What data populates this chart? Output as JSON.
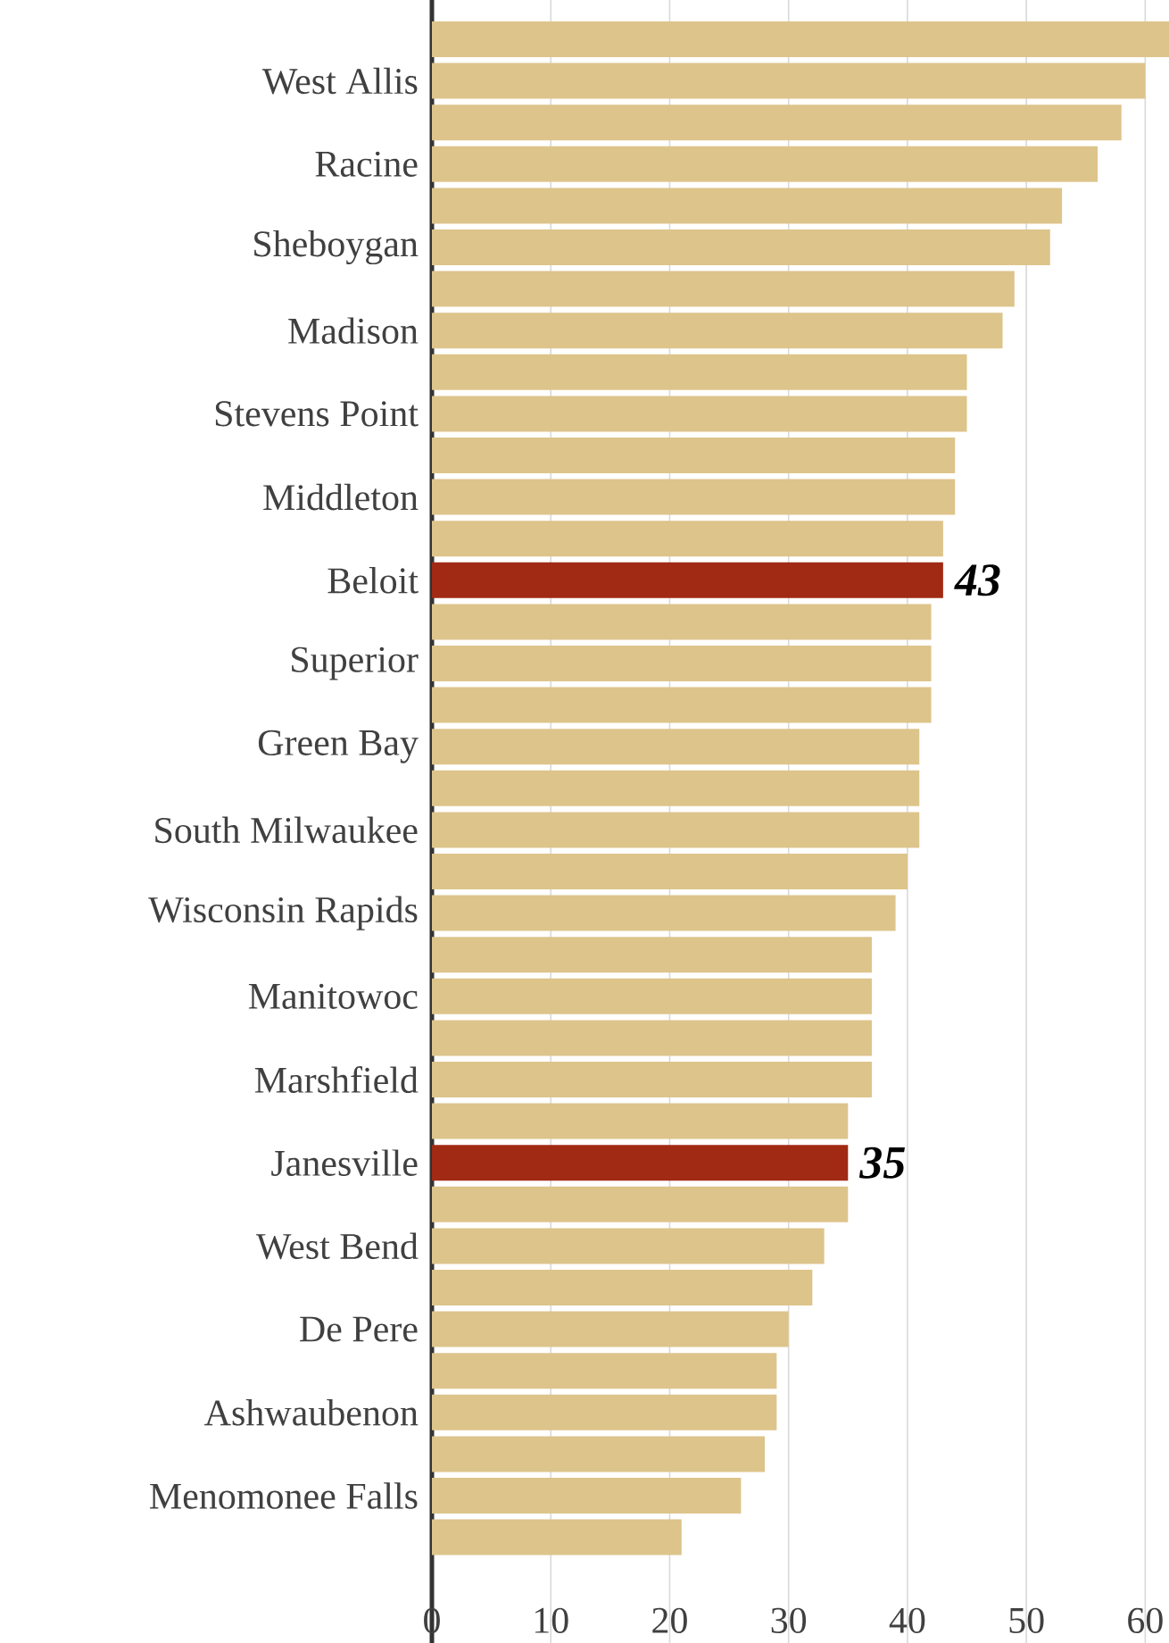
{
  "chart_data": {
    "type": "bar",
    "orientation": "horizontal",
    "categories": [
      null,
      "West Allis",
      null,
      "Racine",
      null,
      "Sheboygan",
      null,
      "Madison",
      null,
      "Stevens Point",
      null,
      "Middleton",
      null,
      "Beloit",
      null,
      "Superior",
      null,
      "Green Bay",
      null,
      "South Milwaukee",
      null,
      "Wisconsin Rapids",
      null,
      "Manitowoc",
      null,
      "Marshfield",
      null,
      "Janesville",
      null,
      "West Bend",
      null,
      "De Pere",
      null,
      "Ashwaubenon",
      null,
      "Menomonee Falls",
      null
    ],
    "values": [
      62,
      60,
      58,
      56,
      53,
      52,
      49,
      48,
      45,
      45,
      44,
      44,
      43,
      43,
      42,
      42,
      42,
      41,
      41,
      41,
      40,
      39,
      37,
      37,
      37,
      37,
      35,
      35,
      35,
      33,
      32,
      30,
      29,
      29,
      28,
      26,
      21
    ],
    "colors": [
      "#ddc48b",
      "#ddc48b",
      "#ddc48b",
      "#ddc48b",
      "#ddc48b",
      "#ddc48b",
      "#ddc48b",
      "#ddc48b",
      "#ddc48b",
      "#ddc48b",
      "#ddc48b",
      "#ddc48b",
      "#ddc48b",
      "#a02a14",
      "#ddc48b",
      "#ddc48b",
      "#ddc48b",
      "#ddc48b",
      "#ddc48b",
      "#ddc48b",
      "#ddc48b",
      "#ddc48b",
      "#ddc48b",
      "#ddc48b",
      "#ddc48b",
      "#ddc48b",
      "#ddc48b",
      "#a02a14",
      "#ddc48b",
      "#ddc48b",
      "#ddc48b",
      "#ddc48b",
      "#ddc48b",
      "#ddc48b",
      "#ddc48b",
      "#ddc48b",
      "#ddc48b"
    ],
    "value_labels": [
      null,
      null,
      null,
      null,
      null,
      null,
      null,
      null,
      null,
      null,
      null,
      null,
      null,
      "43",
      null,
      null,
      null,
      null,
      null,
      null,
      null,
      null,
      null,
      null,
      null,
      null,
      null,
      "35",
      null,
      null,
      null,
      null,
      null,
      null,
      null,
      null,
      null
    ],
    "xlim": [
      0,
      62
    ],
    "xticks": [
      0,
      10,
      20,
      30,
      40,
      50,
      60
    ],
    "grid": "x"
  }
}
